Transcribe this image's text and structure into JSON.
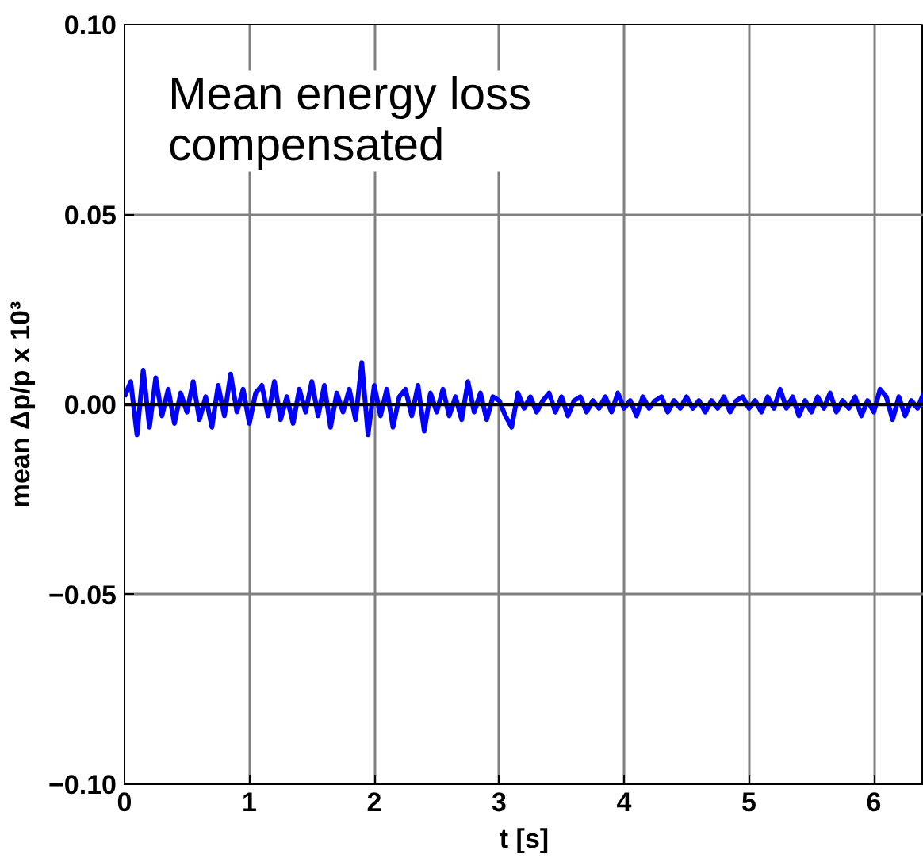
{
  "chart_data": {
    "type": "line",
    "xlabel": "t [s]",
    "ylabel": "mean Δp/p x 10³",
    "annotations": [
      "Mean energy loss\ncompensated"
    ],
    "xlim": [
      0,
      6.4
    ],
    "ylim": [
      -0.1,
      0.1
    ],
    "xticks": [
      0,
      1,
      2,
      3,
      4,
      5,
      6
    ],
    "yticks": [
      {
        "value": -0.1,
        "label": "−0.10"
      },
      {
        "value": -0.05,
        "label": "−0.05"
      },
      {
        "value": 0,
        "label": "0.00"
      },
      {
        "value": 0.05,
        "label": "0.05"
      },
      {
        "value": 0.1,
        "label": "0.10"
      }
    ],
    "grid": true,
    "ref_lines": [
      {
        "axis": "y",
        "value": 0,
        "color": "#000000"
      }
    ],
    "series": [
      {
        "color": "#0000ff",
        "x": [
          0,
          0.05,
          0.1,
          0.15,
          0.2,
          0.25,
          0.3,
          0.35,
          0.4,
          0.45,
          0.5,
          0.55,
          0.6,
          0.65,
          0.7,
          0.75,
          0.8,
          0.85,
          0.9,
          0.95,
          1.0,
          1.05,
          1.1,
          1.15,
          1.2,
          1.25,
          1.3,
          1.35,
          1.4,
          1.45,
          1.5,
          1.55,
          1.6,
          1.65,
          1.7,
          1.75,
          1.8,
          1.85,
          1.9,
          1.95,
          2.0,
          2.05,
          2.1,
          2.15,
          2.2,
          2.25,
          2.3,
          2.35,
          2.4,
          2.45,
          2.5,
          2.55,
          2.6,
          2.65,
          2.7,
          2.75,
          2.8,
          2.85,
          2.9,
          2.95,
          3.0,
          3.05,
          3.1,
          3.15,
          3.2,
          3.25,
          3.3,
          3.35,
          3.4,
          3.45,
          3.5,
          3.55,
          3.6,
          3.65,
          3.7,
          3.75,
          3.8,
          3.85,
          3.9,
          3.95,
          4.0,
          4.05,
          4.1,
          4.15,
          4.2,
          4.25,
          4.3,
          4.35,
          4.4,
          4.45,
          4.5,
          4.55,
          4.6,
          4.65,
          4.7,
          4.75,
          4.8,
          4.85,
          4.9,
          4.95,
          5.0,
          5.05,
          5.1,
          5.15,
          5.2,
          5.25,
          5.3,
          5.35,
          5.4,
          5.45,
          5.5,
          5.55,
          5.6,
          5.65,
          5.7,
          5.75,
          5.8,
          5.85,
          5.9,
          5.95,
          6.0,
          6.05,
          6.1,
          6.15,
          6.2,
          6.25,
          6.3,
          6.35,
          6.4
        ],
        "values": [
          0.002,
          0.006,
          -0.008,
          0.009,
          -0.006,
          0.007,
          -0.003,
          0.004,
          -0.005,
          0.003,
          -0.002,
          0.006,
          -0.004,
          0.002,
          -0.006,
          0.005,
          -0.003,
          0.008,
          -0.002,
          0.004,
          -0.005,
          0.003,
          0.005,
          -0.003,
          0.006,
          -0.004,
          0.002,
          -0.005,
          0.004,
          -0.002,
          0.006,
          -0.003,
          0.005,
          -0.006,
          0.003,
          -0.002,
          0.004,
          -0.004,
          0.011,
          -0.008,
          0.005,
          -0.003,
          0.004,
          -0.006,
          0.002,
          0.004,
          -0.003,
          0.005,
          -0.007,
          0.003,
          -0.002,
          0.004,
          -0.003,
          0.002,
          -0.004,
          0.006,
          -0.002,
          0.003,
          -0.004,
          0.002,
          0.001,
          -0.003,
          -0.006,
          0.003,
          -0.001,
          0.002,
          -0.002,
          0.001,
          0.003,
          -0.002,
          0.002,
          -0.003,
          0.001,
          0.002,
          -0.002,
          0.001,
          -0.001,
          0.002,
          -0.002,
          0.003,
          -0.001,
          0.001,
          -0.003,
          0.002,
          -0.001,
          0.001,
          0.002,
          -0.002,
          0.001,
          -0.001,
          0.002,
          -0.001,
          0.001,
          -0.002,
          0.001,
          -0.001,
          0.002,
          -0.002,
          0.001,
          0.002,
          -0.001,
          0.001,
          -0.002,
          0.002,
          -0.001,
          0.004,
          -0.001,
          0.002,
          -0.003,
          0.001,
          -0.002,
          0.002,
          -0.001,
          0.003,
          -0.002,
          0.001,
          -0.001,
          0.002,
          -0.003,
          0.001,
          -0.002,
          0.004,
          0.002,
          -0.004,
          0.002,
          -0.003,
          0.001,
          -0.001,
          0.003
        ]
      }
    ]
  }
}
